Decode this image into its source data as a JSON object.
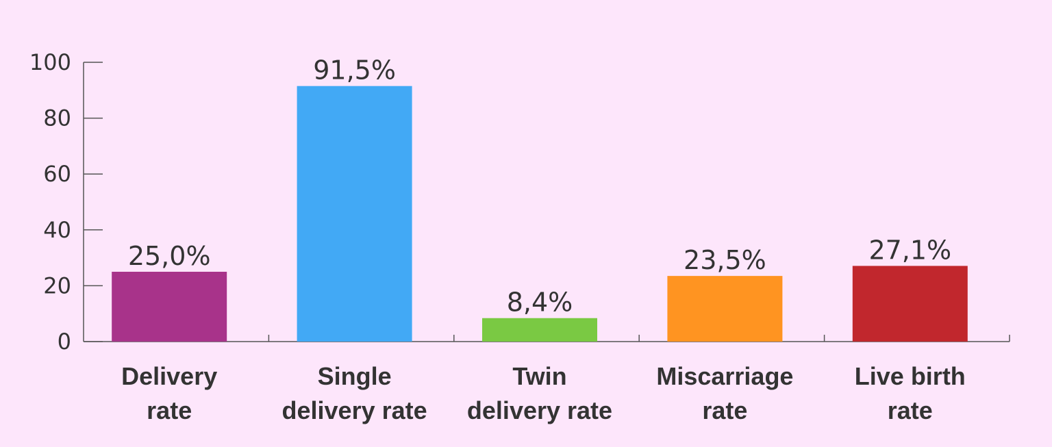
{
  "chart_data": {
    "type": "bar",
    "categories": [
      [
        "Delivery",
        "rate"
      ],
      [
        "Single",
        "delivery rate"
      ],
      [
        "Twin",
        "delivery rate"
      ],
      [
        "Miscarriage",
        "rate"
      ],
      [
        "Live birth",
        "rate"
      ]
    ],
    "values": [
      25.0,
      91.5,
      8.4,
      23.5,
      27.1
    ],
    "value_labels": [
      "25,0%",
      "91,5%",
      "8,4%",
      "23,5%",
      "27,1%"
    ],
    "colors": [
      "#a8338a",
      "#42a9f5",
      "#7ac943",
      "#ff9421",
      "#c1272d"
    ],
    "ylim": [
      0,
      100
    ],
    "yticks": [
      0,
      20,
      40,
      60,
      80,
      100
    ],
    "title": "",
    "xlabel": "",
    "ylabel": "",
    "grid": false,
    "legend": "none"
  }
}
